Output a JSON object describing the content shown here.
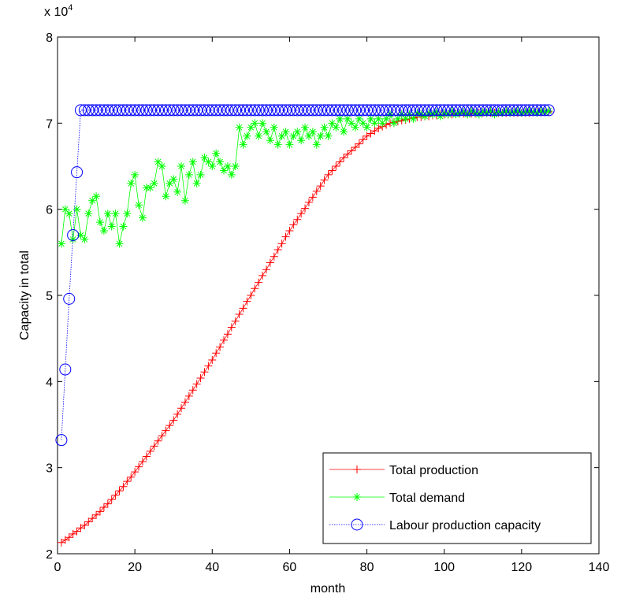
{
  "chart_data": {
    "type": "line",
    "x_label": "month",
    "y_label": "Capacity in total",
    "y_multiplier": "x 10",
    "y_multiplier_exponent": "4",
    "xlim": [
      0,
      140
    ],
    "ylim": [
      2,
      8
    ],
    "xticks": [
      0,
      20,
      40,
      60,
      80,
      100,
      120,
      140
    ],
    "yticks": [
      2,
      3,
      4,
      5,
      6,
      7,
      8
    ],
    "legend": "lower right",
    "x": [
      1,
      2,
      3,
      4,
      5,
      6,
      7,
      8,
      9,
      10,
      11,
      12,
      13,
      14,
      15,
      16,
      17,
      18,
      19,
      20,
      21,
      22,
      23,
      24,
      25,
      26,
      27,
      28,
      29,
      30,
      31,
      32,
      33,
      34,
      35,
      36,
      37,
      38,
      39,
      40,
      41,
      42,
      43,
      44,
      45,
      46,
      47,
      48,
      49,
      50,
      51,
      52,
      53,
      54,
      55,
      56,
      57,
      58,
      59,
      60,
      61,
      62,
      63,
      64,
      65,
      66,
      67,
      68,
      69,
      70,
      71,
      72,
      73,
      74,
      75,
      76,
      77,
      78,
      79,
      80,
      81,
      82,
      83,
      84,
      85,
      86,
      87,
      88,
      89,
      90,
      91,
      92,
      93,
      94,
      95,
      96,
      97,
      98,
      99,
      100,
      101,
      102,
      103,
      104,
      105,
      106,
      107,
      108,
      109,
      110,
      111,
      112,
      113,
      114,
      115,
      116,
      117,
      118,
      119,
      120,
      121,
      122,
      123,
      124,
      125,
      126,
      127
    ],
    "series": [
      {
        "name": "Total production",
        "color": "#ff0000",
        "marker": "+",
        "style": "solid",
        "values": [
          2.13,
          2.16,
          2.19,
          2.23,
          2.26,
          2.3,
          2.33,
          2.37,
          2.41,
          2.45,
          2.49,
          2.54,
          2.58,
          2.63,
          2.68,
          2.73,
          2.78,
          2.84,
          2.89,
          2.95,
          3.01,
          3.07,
          3.13,
          3.19,
          3.25,
          3.31,
          3.37,
          3.43,
          3.49,
          3.55,
          3.62,
          3.69,
          3.76,
          3.83,
          3.9,
          3.97,
          4.04,
          4.11,
          4.18,
          4.25,
          4.33,
          4.4,
          4.48,
          4.55,
          4.63,
          4.7,
          4.78,
          4.85,
          4.93,
          5.0,
          5.08,
          5.15,
          5.23,
          5.3,
          5.38,
          5.45,
          5.53,
          5.6,
          5.68,
          5.75,
          5.82,
          5.88,
          5.95,
          6.01,
          6.08,
          6.14,
          6.21,
          6.27,
          6.34,
          6.4,
          6.45,
          6.5,
          6.55,
          6.6,
          6.64,
          6.68,
          6.72,
          6.76,
          6.81,
          6.85,
          6.88,
          6.91,
          6.94,
          6.96,
          6.98,
          7.0,
          7.01,
          7.02,
          7.03,
          7.04,
          7.05,
          7.06,
          7.07,
          7.07,
          7.08,
          7.08,
          7.09,
          7.09,
          7.1,
          7.1,
          7.1,
          7.1,
          7.11,
          7.11,
          7.11,
          7.11,
          7.11,
          7.11,
          7.12,
          7.12,
          7.12,
          7.12,
          7.12,
          7.12,
          7.12,
          7.12,
          7.12,
          7.12,
          7.12,
          7.12,
          7.12,
          7.12,
          7.13,
          7.13,
          7.13,
          7.13,
          7.13
        ]
      },
      {
        "name": "Total demand",
        "color": "#00ff00",
        "marker": "*",
        "style": "solid",
        "values": [
          5.6,
          6.0,
          5.95,
          5.65,
          6.0,
          5.7,
          5.65,
          5.95,
          6.1,
          6.15,
          5.85,
          5.75,
          5.95,
          5.8,
          5.95,
          5.6,
          5.8,
          5.95,
          6.3,
          6.4,
          6.05,
          5.9,
          6.25,
          6.25,
          6.3,
          6.55,
          6.5,
          6.15,
          6.3,
          6.35,
          6.2,
          6.5,
          6.1,
          6.4,
          6.55,
          6.3,
          6.4,
          6.6,
          6.55,
          6.5,
          6.65,
          6.55,
          6.45,
          6.5,
          6.4,
          6.5,
          6.95,
          6.75,
          6.85,
          6.95,
          7.0,
          6.85,
          7.0,
          6.9,
          6.8,
          6.95,
          6.75,
          6.85,
          6.9,
          6.75,
          6.85,
          6.9,
          6.8,
          6.95,
          6.85,
          6.9,
          6.75,
          6.85,
          6.95,
          6.85,
          7.0,
          6.95,
          7.05,
          6.9,
          7.05,
          7.0,
          6.95,
          7.05,
          7.0,
          6.95,
          7.05,
          7.0,
          7.05,
          7.0,
          7.05,
          7.1,
          7.0,
          7.05,
          7.1,
          7.05,
          7.1,
          7.05,
          7.12,
          7.1,
          7.08,
          7.12,
          7.1,
          7.13,
          7.08,
          7.12,
          7.1,
          7.14,
          7.1,
          7.12,
          7.13,
          7.1,
          7.14,
          7.12,
          7.1,
          7.13,
          7.12,
          7.14,
          7.1,
          7.13,
          7.12,
          7.14,
          7.12,
          7.13,
          7.14,
          7.12,
          7.13,
          7.14,
          7.13,
          7.12,
          7.14,
          7.13,
          7.14
        ]
      },
      {
        "name": "Labour production capacity",
        "color": "#0000ff",
        "marker": "o",
        "style": "dotted",
        "values": [
          3.32,
          4.14,
          4.96,
          5.7,
          6.43,
          7.15,
          7.15,
          7.15,
          7.15,
          7.15,
          7.15,
          7.15,
          7.15,
          7.15,
          7.15,
          7.15,
          7.15,
          7.15,
          7.15,
          7.15,
          7.15,
          7.15,
          7.15,
          7.15,
          7.15,
          7.15,
          7.15,
          7.15,
          7.15,
          7.15,
          7.15,
          7.15,
          7.15,
          7.15,
          7.15,
          7.15,
          7.15,
          7.15,
          7.15,
          7.15,
          7.15,
          7.15,
          7.15,
          7.15,
          7.15,
          7.15,
          7.15,
          7.15,
          7.15,
          7.15,
          7.15,
          7.15,
          7.15,
          7.15,
          7.15,
          7.15,
          7.15,
          7.15,
          7.15,
          7.15,
          7.15,
          7.15,
          7.15,
          7.15,
          7.15,
          7.15,
          7.15,
          7.15,
          7.15,
          7.15,
          7.15,
          7.15,
          7.15,
          7.15,
          7.15,
          7.15,
          7.15,
          7.15,
          7.15,
          7.15,
          7.15,
          7.15,
          7.15,
          7.15,
          7.15,
          7.15,
          7.15,
          7.15,
          7.15,
          7.15,
          7.15,
          7.15,
          7.15,
          7.15,
          7.15,
          7.15,
          7.15,
          7.15,
          7.15,
          7.15,
          7.15,
          7.15,
          7.15,
          7.15,
          7.15,
          7.15,
          7.15,
          7.15,
          7.15,
          7.15,
          7.15,
          7.15,
          7.15,
          7.15,
          7.15,
          7.15,
          7.15,
          7.15,
          7.15,
          7.15,
          7.15,
          7.15,
          7.15,
          7.15,
          7.15,
          7.15,
          7.15
        ]
      }
    ]
  }
}
